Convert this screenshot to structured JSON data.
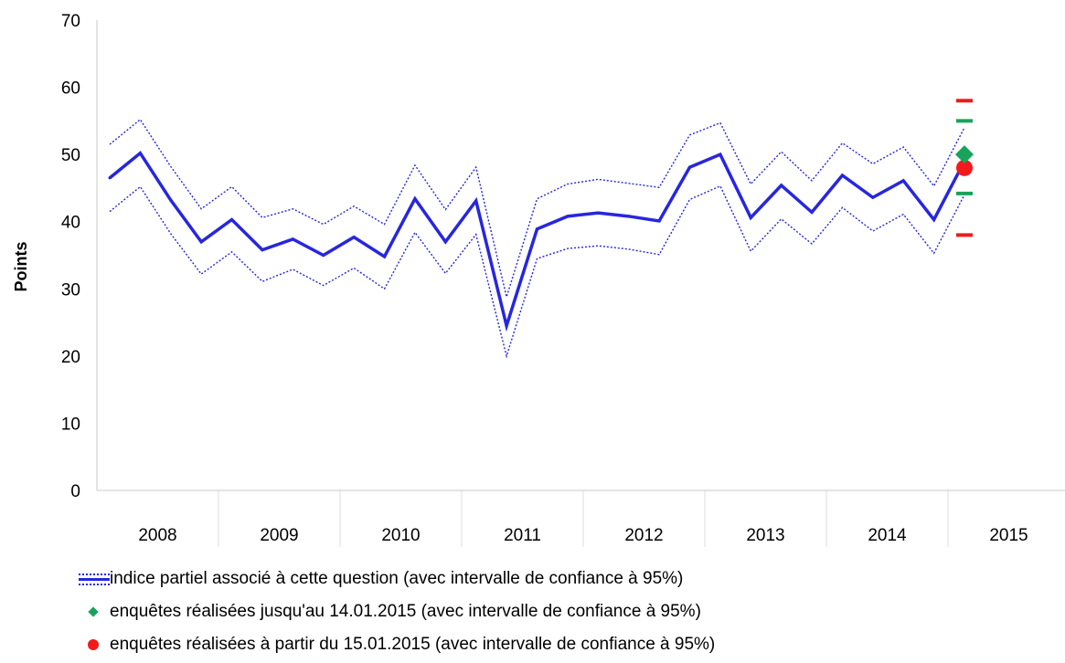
{
  "chart_data": {
    "type": "line",
    "title": "",
    "xlabel": "",
    "ylabel": "Points",
    "ylim": [
      0,
      70
    ],
    "yticks": [
      "0",
      "10",
      "20",
      "30",
      "40",
      "50",
      "60",
      "70"
    ],
    "year_labels": [
      "2008",
      "2009",
      "2010",
      "2011",
      "2012",
      "2013",
      "2014",
      "2015"
    ],
    "grid": false,
    "legend_position": "bottom",
    "series": [
      {
        "name": "indice partiel associé à cette question (avec intervalle de confiance à 95%)",
        "color": "#2626e0",
        "style": "solid",
        "values": [
          46.5,
          50.2,
          43.2,
          37.0,
          40.3,
          35.8,
          37.4,
          35.0,
          37.7,
          34.8,
          43.4,
          37.0,
          43.1,
          24.5,
          38.9,
          40.8,
          41.3,
          40.8,
          40.1,
          48.1,
          50.0,
          40.6,
          45.4,
          41.4,
          46.9,
          43.6,
          46.1,
          40.3,
          49.0
        ],
        "ci_upper": [
          51.5,
          55.2,
          48.2,
          41.9,
          45.2,
          40.6,
          41.9,
          39.6,
          42.3,
          39.6,
          48.4,
          41.8,
          48.1,
          28.8,
          43.4,
          45.6,
          46.3,
          45.7,
          45.1,
          52.9,
          54.7,
          45.6,
          50.4,
          46.1,
          51.7,
          48.6,
          51.1,
          45.3,
          54.0
        ],
        "ci_lower": [
          41.5,
          45.2,
          38.2,
          32.2,
          35.5,
          31.1,
          32.9,
          30.5,
          33.1,
          30.0,
          38.4,
          32.3,
          38.1,
          20.0,
          34.5,
          36.0,
          36.4,
          35.9,
          35.1,
          43.3,
          45.3,
          35.6,
          40.4,
          36.7,
          42.1,
          38.6,
          41.1,
          35.3,
          44.0
        ]
      },
      {
        "name": "enquêtes réalisées jusqu'au 14.01.2015 (avec intervalle de confiance à 95%)",
        "color": "#18a35a",
        "marker": "diamond",
        "value": 50.0,
        "ci_upper": 55.0,
        "ci_lower": 44.2
      },
      {
        "name": "enquêtes réalisées à partir du 15.01.2015 (avec intervalle de confiance à 95%)",
        "color": "#f21a1a",
        "marker": "circle",
        "value": 48.0,
        "ci_upper": 58.0,
        "ci_lower": 38.0
      }
    ]
  }
}
